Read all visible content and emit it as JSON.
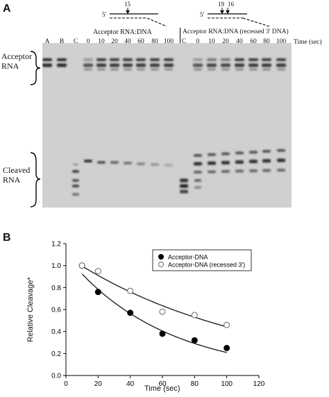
{
  "panel_a": {
    "label": "A",
    "diagram_left": {
      "five_prime": "5'",
      "cut_site": "15"
    },
    "diagram_right": {
      "five_prime": "5'",
      "cut_site_1": "19",
      "cut_site_2": "16"
    },
    "header_left": "Acceptor RNA:DNA",
    "header_right": "Acceptor RNA:DNA (recessed 3' DNA)",
    "time_label": "Time (sec)",
    "lanes": [
      "A",
      "B",
      "C",
      "0",
      "10",
      "20",
      "40",
      "60",
      "80",
      "100",
      "C",
      "0",
      "10",
      "20",
      "40",
      "60",
      "80",
      "100"
    ],
    "side_label_top": [
      "Acceptor",
      "RNA"
    ],
    "side_label_bottom": [
      "Cleaved",
      "RNA"
    ]
  },
  "panel_b": {
    "label": "B",
    "chart_data": {
      "type": "scatter",
      "xlabel": "Time (sec)",
      "ylabel": "Relative Cleavage*",
      "xlim": [
        0,
        120
      ],
      "ylim": [
        0,
        1.2
      ],
      "x_ticks": [
        "0",
        "20",
        "40",
        "60",
        "80",
        "100",
        "120"
      ],
      "y_ticks": [
        "0.0",
        "0.2",
        "0.4",
        "0.6",
        "0.8",
        "1.0",
        "1.2"
      ],
      "legend_position": "top-right",
      "series": [
        {
          "name": "Acceptor-DNA",
          "marker": "filled-circle",
          "color": "#000000",
          "x": [
            10,
            20,
            40,
            60,
            80,
            100
          ],
          "y": [
            1.0,
            0.76,
            0.57,
            0.38,
            0.32,
            0.25
          ],
          "fit": {
            "a": 1.09,
            "k": 0.0165
          }
        },
        {
          "name": "Acceptor-DNA (recessed 3')",
          "marker": "open-circle",
          "color": "#555555",
          "x": [
            10,
            20,
            40,
            60,
            80,
            100
          ],
          "y": [
            1.0,
            0.95,
            0.77,
            0.58,
            0.55,
            0.46
          ],
          "fit": {
            "a": 1.09,
            "k": 0.009
          }
        }
      ]
    }
  }
}
